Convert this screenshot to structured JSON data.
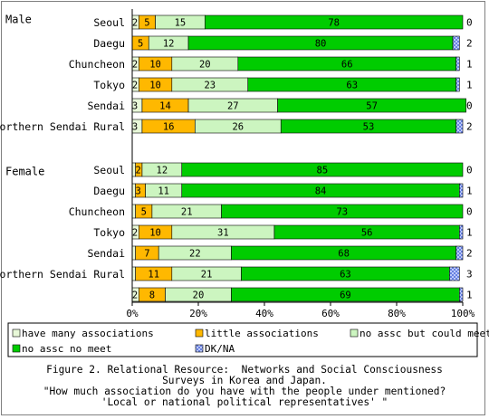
{
  "chart_data": {
    "type": "bar",
    "stacked": true,
    "orientation": "horizontal",
    "percent": true,
    "xlim": [
      0,
      100
    ],
    "x_ticks": [
      "0%",
      "20%",
      "40%",
      "60%",
      "80%",
      "100%"
    ],
    "grid": false,
    "legend_position": "bottom",
    "group_labels": [
      "Male",
      "Female"
    ],
    "series": [
      {
        "name": "have many associations",
        "color": "#e8f8d8"
      },
      {
        "name": "little associations",
        "color": "#ffb800"
      },
      {
        "name": "no assc but could meet",
        "color": "#ccf5c0"
      },
      {
        "name": "no assc no meet",
        "color": "#00cc00"
      },
      {
        "name": "DK/NA",
        "color": "#9fb6ff"
      }
    ],
    "rows": [
      {
        "group": "Male",
        "category": "Seoul",
        "values": [
          2,
          5,
          15,
          78,
          0
        ]
      },
      {
        "group": "Male",
        "category": "Daegu",
        "values": [
          0,
          5,
          12,
          80,
          2
        ]
      },
      {
        "group": "Male",
        "category": "Chuncheon",
        "values": [
          2,
          10,
          20,
          66,
          1
        ]
      },
      {
        "group": "Male",
        "category": "Tokyo",
        "values": [
          2,
          10,
          23,
          63,
          1
        ]
      },
      {
        "group": "Male",
        "category": "Sendai",
        "values": [
          3,
          14,
          27,
          57,
          0
        ]
      },
      {
        "group": "Male",
        "category": "Northern Sendai Rural",
        "values": [
          3,
          16,
          26,
          53,
          2
        ]
      },
      {
        "group": "Female",
        "category": "Seoul",
        "values": [
          1,
          2,
          12,
          85,
          0
        ]
      },
      {
        "group": "Female",
        "category": "Daegu",
        "values": [
          1,
          3,
          11,
          84,
          1
        ]
      },
      {
        "group": "Female",
        "category": "Chuncheon",
        "values": [
          1,
          5,
          21,
          73,
          0
        ]
      },
      {
        "group": "Female",
        "category": "Tokyo",
        "values": [
          2,
          10,
          31,
          56,
          1
        ]
      },
      {
        "group": "Female",
        "category": "Sendai",
        "values": [
          1,
          7,
          22,
          68,
          2
        ]
      },
      {
        "group": "Female",
        "category": "Northern Sendai Rural",
        "values": [
          1,
          11,
          21,
          63,
          3
        ]
      },
      {
        "group": "Female",
        "category": "",
        "values": [
          2,
          8,
          20,
          69,
          1
        ]
      }
    ],
    "value_labels": [
      [
        "2",
        "5",
        "15",
        "78",
        "0"
      ],
      [
        "",
        "5",
        "12",
        "80",
        "2"
      ],
      [
        "2",
        "10",
        "20",
        "66",
        "1"
      ],
      [
        "2",
        "10",
        "23",
        "63",
        "1"
      ],
      [
        "3",
        "14",
        "27",
        "57",
        "0"
      ],
      [
        "3",
        "16",
        "26",
        "53",
        "2"
      ],
      [
        "",
        "2",
        "12",
        "85",
        "0"
      ],
      [
        "",
        "3",
        "11",
        "84",
        "1"
      ],
      [
        "",
        "5",
        "21",
        "73",
        "0"
      ],
      [
        "2",
        "10",
        "31",
        "56",
        "1"
      ],
      [
        "",
        "7",
        "22",
        "68",
        "2"
      ],
      [
        "",
        "11",
        "21",
        "63",
        "3"
      ],
      [
        "2",
        "8",
        "20",
        "69",
        "1"
      ]
    ]
  },
  "caption": {
    "line1": "Figure 2. Relational Resource:  Networks and Social Consciousness",
    "line2": "Surveys in Korea and Japan.",
    "line3": "\"How much association do you have with the people under mentioned?",
    "line4": "'Local or national political representatives' \""
  }
}
